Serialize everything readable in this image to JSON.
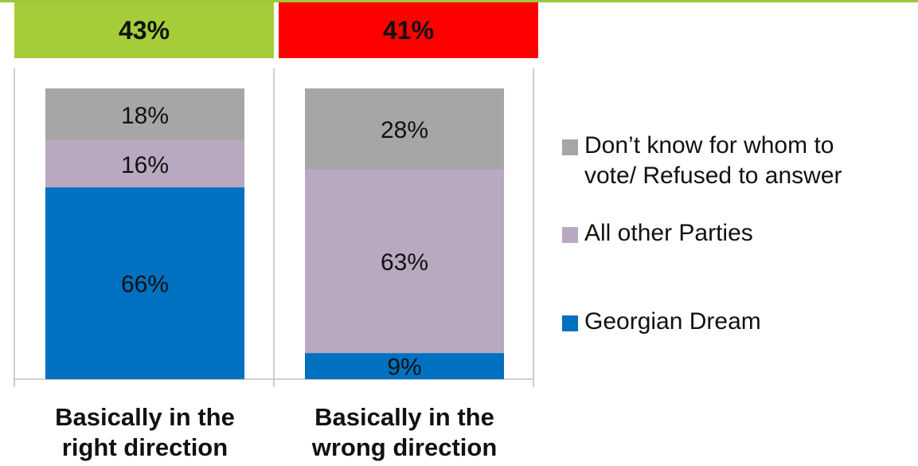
{
  "headers": [
    {
      "label": "43%",
      "color": "#a5cd39"
    },
    {
      "label": "41%",
      "color": "#ff0000"
    }
  ],
  "chart_data": {
    "type": "bar",
    "stacked": true,
    "categories": [
      "Basically in the\nright direction",
      "Basically in the\nwrong direction"
    ],
    "series": [
      {
        "name": "Georgian Dream",
        "values": [
          66,
          9
        ],
        "labels": [
          "66%",
          "9%"
        ],
        "color": "#0070c0"
      },
      {
        "name": "All other Parties",
        "values": [
          16,
          63
        ],
        "labels": [
          "16%",
          "63%"
        ],
        "color": "#b8a9c0"
      },
      {
        "name": "Don’t know for whom to\nvote/ Refused to answer",
        "values": [
          18,
          28
        ],
        "labels": [
          "18%",
          "28%"
        ],
        "color": "#a6a6a6"
      }
    ],
    "ylim": [
      0,
      100
    ],
    "legend_position": "right",
    "grid": false
  },
  "legend": [
    {
      "label": "Don’t know for whom to\nvote/ Refused to answer",
      "color": "#a6a6a6",
      "icon": "square-swatch"
    },
    {
      "label": "All other Parties",
      "color": "#b8a9c0",
      "icon": "square-swatch"
    },
    {
      "label": "Georgian Dream",
      "color": "#0070c0",
      "icon": "square-swatch"
    }
  ]
}
